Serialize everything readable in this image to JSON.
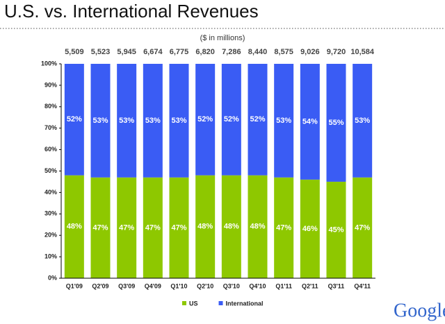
{
  "chart_data": {
    "type": "stacked_bar",
    "title": "U.S. vs. International Revenues",
    "subtitle": "($ in millions)",
    "categories": [
      "Q1'09",
      "Q2'09",
      "Q3'09",
      "Q4'09",
      "Q1'10",
      "Q2'10",
      "Q3'10",
      "Q4'10",
      "Q1'11",
      "Q2'11",
      "Q3'11",
      "Q4'11"
    ],
    "series": [
      {
        "name": "US",
        "color": "#8ec800",
        "values": [
          48,
          47,
          47,
          47,
          47,
          48,
          48,
          48,
          47,
          46,
          45,
          47
        ],
        "value_labels": [
          "48%",
          "47%",
          "47%",
          "47%",
          "47%",
          "48%",
          "48%",
          "48%",
          "47%",
          "46%",
          "45%",
          "47%"
        ]
      },
      {
        "name": "International",
        "color": "#3a5cf4",
        "values": [
          52,
          53,
          53,
          53,
          53,
          52,
          52,
          52,
          53,
          54,
          55,
          53
        ],
        "value_labels": [
          "52%",
          "53%",
          "53%",
          "53%",
          "53%",
          "52%",
          "52%",
          "52%",
          "53%",
          "54%",
          "55%",
          "53%"
        ]
      }
    ],
    "totals": {
      "values": [
        5509,
        5523,
        5945,
        6674,
        6775,
        6820,
        7286,
        8440,
        8575,
        9026,
        9720,
        10584
      ],
      "value_labels": [
        "5,509",
        "5,523",
        "5,945",
        "6,674",
        "6,775",
        "6,820",
        "7,286",
        "8,440",
        "8,575",
        "9,026",
        "9,720",
        "10,584"
      ]
    },
    "ylim": [
      0,
      100
    ],
    "yticks": [
      {
        "value": 0,
        "label": "0%"
      },
      {
        "value": 10,
        "label": "10%"
      },
      {
        "value": 20,
        "label": "20%"
      },
      {
        "value": 30,
        "label": "30%"
      },
      {
        "value": 40,
        "label": "40%"
      },
      {
        "value": 50,
        "label": "50%"
      },
      {
        "value": 60,
        "label": "60%"
      },
      {
        "value": 70,
        "label": "70%"
      },
      {
        "value": 80,
        "label": "80%"
      },
      {
        "value": 90,
        "label": "90%"
      },
      {
        "value": 100,
        "label": "100%"
      }
    ],
    "legend": "bottom",
    "logo": "Google"
  }
}
